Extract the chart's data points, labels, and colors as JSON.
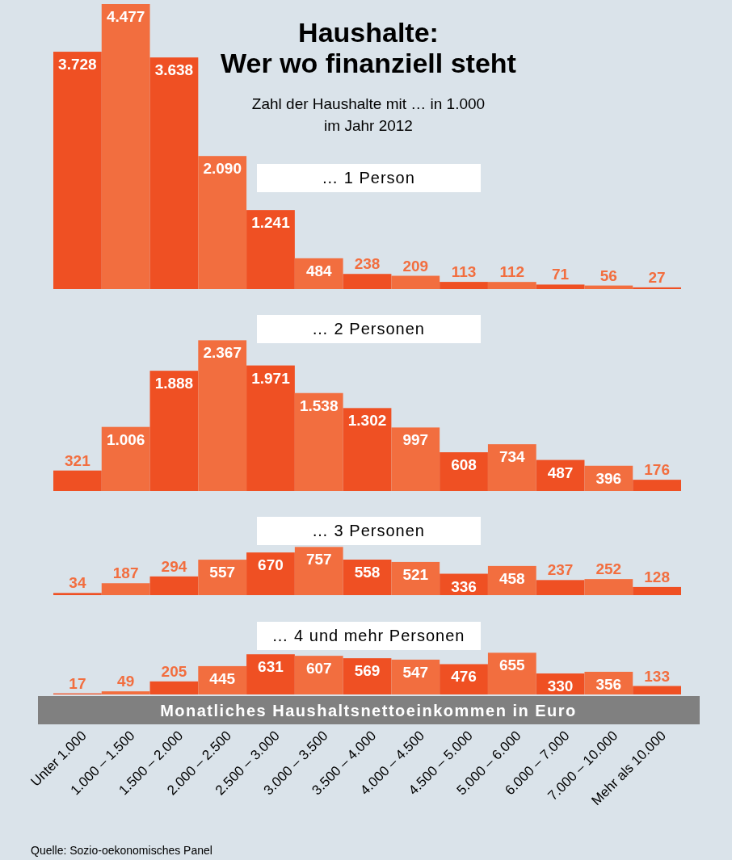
{
  "chart_data": [
    {
      "type": "bar",
      "title": "Haushalte:\nWer wo finanziell steht",
      "subtitle": "Zahl der Haushalte mit … in 1.000\nim Jahr 2012",
      "annotations": [
        "… 1 Person"
      ],
      "categories": [
        null,
        null,
        null,
        null,
        null,
        null,
        null,
        null,
        null,
        null,
        null,
        null,
        null
      ],
      "tick_labels": false,
      "values": [
        3728,
        4477,
        3638,
        2090,
        1241,
        484,
        238,
        209,
        113,
        112,
        71,
        56,
        27
      ],
      "value_labels": [
        "3.728",
        "4.477",
        "3.638",
        "2.090",
        "1.241",
        "484",
        "238",
        "209",
        "113",
        "112",
        "71",
        "56",
        "27"
      ],
      "colors": [
        "#ef5023",
        "#f26e3f",
        "#ef5023",
        "#f26e3f",
        "#ef5023",
        "#f26e3f",
        "#ef5023",
        "#f26e3f",
        "#ef5023",
        "#f26e3f",
        "#ef5023",
        "#f26e3f",
        "#ef5023"
      ]
    },
    {
      "type": "bar",
      "annotations": [
        "… 2 Personen"
      ],
      "categories": [
        null,
        null,
        null,
        null,
        null,
        null,
        null,
        null,
        null,
        null,
        null,
        null,
        null
      ],
      "tick_labels": false,
      "values": [
        321,
        1006,
        1888,
        2367,
        1971,
        1538,
        1302,
        997,
        608,
        734,
        487,
        396,
        176
      ],
      "value_labels": [
        "321",
        "1.006",
        "1.888",
        "2.367",
        "1.971",
        "1.538",
        "1.302",
        "997",
        "608",
        "734",
        "487",
        "396",
        "176"
      ],
      "colors": [
        "#ef5023",
        "#f26e3f",
        "#ef5023",
        "#f26e3f",
        "#ef5023",
        "#f26e3f",
        "#ef5023",
        "#f26e3f",
        "#ef5023",
        "#f26e3f",
        "#ef5023",
        "#f26e3f",
        "#ef5023"
      ]
    },
    {
      "type": "bar",
      "annotations": [
        "… 3 Personen"
      ],
      "categories": [
        null,
        null,
        null,
        null,
        null,
        null,
        null,
        null,
        null,
        null,
        null,
        null,
        null
      ],
      "tick_labels": false,
      "values": [
        34,
        187,
        294,
        557,
        670,
        757,
        558,
        521,
        336,
        458,
        237,
        252,
        128
      ],
      "value_labels": [
        "34",
        "187",
        "294",
        "557",
        "670",
        "757",
        "558",
        "521",
        "336",
        "458",
        "237",
        "252",
        "128"
      ],
      "colors": [
        "#ef5023",
        "#f26e3f",
        "#ef5023",
        "#f26e3f",
        "#ef5023",
        "#f26e3f",
        "#ef5023",
        "#f26e3f",
        "#ef5023",
        "#f26e3f",
        "#ef5023",
        "#f26e3f",
        "#ef5023"
      ]
    },
    {
      "type": "bar",
      "annotations": [
        "… 4 und mehr Personen",
        "Quelle: Sozio-oekonomisches Panel"
      ],
      "xlabel": "Monatliches Haushaltsnettoeinkommen in Euro",
      "categories": [
        "Unter 1.000",
        "1.000 – 1.500",
        "1.500 – 2.000",
        "2.000 – 2.500",
        "2.500 – 3.000",
        "3.000 – 3.500",
        "3.500 – 4.000",
        "4.000 – 4.500",
        "4.500 – 5.000",
        "5.000 – 6.000",
        "6.000 – 7.000",
        "7.000 – 10.000",
        "Mehr als 10.000"
      ],
      "tick_labels": "x",
      "values": [
        17,
        49,
        205,
        445,
        631,
        607,
        569,
        547,
        476,
        655,
        330,
        356,
        133
      ],
      "value_labels": [
        "17",
        "49",
        "205",
        "445",
        "631",
        "607",
        "569",
        "547",
        "476",
        "655",
        "330",
        "356",
        "133"
      ],
      "colors": [
        "#ef5023",
        "#f26e3f",
        "#ef5023",
        "#f26e3f",
        "#ef5023",
        "#f26e3f",
        "#ef5023",
        "#f26e3f",
        "#ef5023",
        "#f26e3f",
        "#ef5023",
        "#f26e3f",
        "#ef5023"
      ]
    }
  ]
}
